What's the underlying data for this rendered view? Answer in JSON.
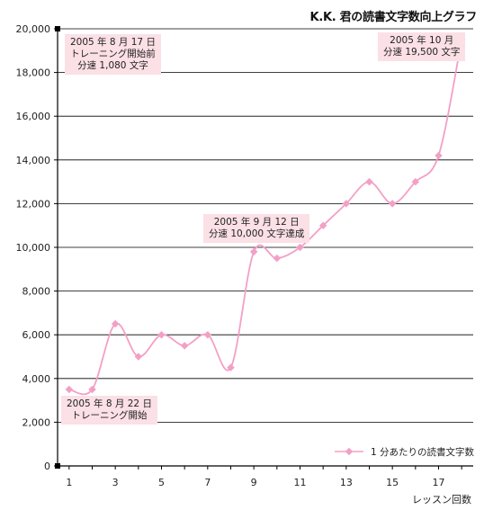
{
  "chart_data": {
    "type": "line",
    "title": "K.K. 君の読書文字数向上グラフ",
    "xlabel": "レッスン回数",
    "ylabel": "",
    "x": [
      1,
      2,
      3,
      4,
      5,
      6,
      7,
      8,
      9,
      10,
      11,
      12,
      13,
      14,
      15,
      16,
      17,
      18
    ],
    "xticks": [
      1,
      3,
      5,
      7,
      9,
      11,
      13,
      15,
      17
    ],
    "yticks": [
      "0",
      "2,000",
      "4,000",
      "6,000",
      "8,000",
      "10,000",
      "12,000",
      "14,000",
      "16,000",
      "18,000",
      "20,000"
    ],
    "ytick_values": [
      0,
      2000,
      4000,
      6000,
      8000,
      10000,
      12000,
      14000,
      16000,
      18000,
      20000
    ],
    "ylim": [
      0,
      20000
    ],
    "xlim": [
      0.5,
      18.5
    ],
    "grid": true,
    "legend_position": "bottom-right",
    "series": [
      {
        "name": "1 分あたりの読書文字数",
        "color": "#f3a0c6",
        "values": [
          3500,
          3500,
          6500,
          5000,
          6000,
          5500,
          6000,
          4500,
          9800,
          9500,
          10000,
          11000,
          12000,
          13000,
          12000,
          13000,
          14200,
          19500
        ]
      }
    ],
    "annotations": [
      {
        "key": "a1",
        "lines": [
          "2005 年 8 月 17 日",
          "トレーニング開始前",
          "分速 1,080 文字"
        ]
      },
      {
        "key": "a2",
        "lines": [
          "2005 年 8 月 22 日",
          "トレーニング開始"
        ]
      },
      {
        "key": "a3",
        "lines": [
          "2005 年 9 月 12 日",
          "分速 10,000 文字達成"
        ]
      },
      {
        "key": "a4",
        "lines": [
          "2005 年 10 月",
          "分速 19,500 文字"
        ]
      }
    ]
  }
}
